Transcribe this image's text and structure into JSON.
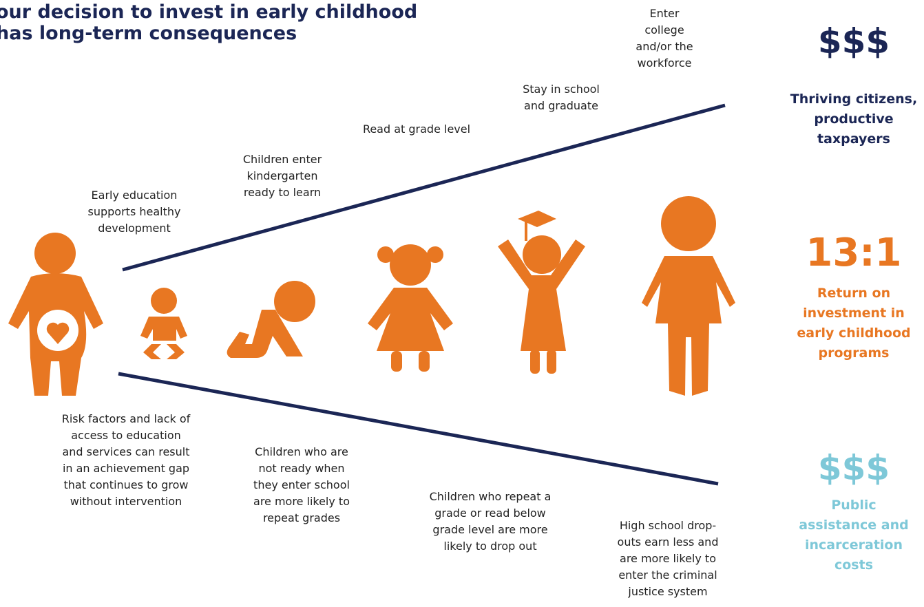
{
  "title": {
    "lines": [
      "our decision to invest in early childhood",
      "has long-term consequences"
    ]
  },
  "upper_labels": [
    {
      "lines": [
        "Early education",
        "supports healthy",
        "development"
      ]
    },
    {
      "lines": [
        "Children enter",
        "kindergarten",
        "ready to learn"
      ]
    },
    {
      "lines": [
        "Read at grade level"
      ]
    },
    {
      "lines": [
        "Stay in school",
        "and graduate"
      ]
    },
    {
      "lines": [
        "Enter",
        "college",
        "and/or the",
        "workforce"
      ]
    }
  ],
  "lower_labels": [
    {
      "lines": [
        "Risk factors and lack of",
        "access to education",
        "and services can result",
        "in an achievement gap",
        "that continues to grow",
        "without intervention"
      ]
    },
    {
      "lines": [
        "Children who are",
        "not ready when",
        "they enter school",
        "are more likely to",
        "repeat grades"
      ]
    },
    {
      "lines": [
        "Children who repeat a",
        "grade or read below",
        "grade level are more",
        "likely to drop out"
      ]
    },
    {
      "lines": [
        "High school drop-",
        "outs earn less and",
        "are more likely to",
        "enter the criminal",
        "justice system"
      ]
    }
  ],
  "outcomes": [
    {
      "figure": "$$$",
      "lines": [
        "Thriving citizens,",
        "productive",
        "taxpayers"
      ]
    },
    {
      "figure": "13:1",
      "lines": [
        "Return on",
        "investment in",
        "early childhood",
        "programs"
      ]
    },
    {
      "figure": "$$$",
      "lines": [
        "Public",
        "assistance and",
        "incarceration",
        "costs"
      ]
    }
  ]
}
